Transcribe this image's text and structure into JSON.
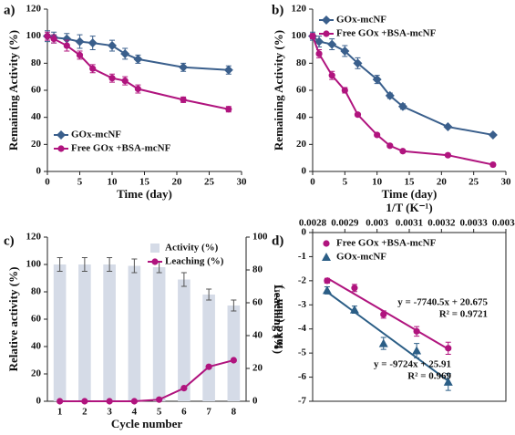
{
  "chart_data": [
    {
      "type": "line",
      "panel_label": "a)",
      "x_label": "Time (day)",
      "y_label": "Remaining Activity (%)",
      "x": [
        0,
        1,
        3,
        5,
        7,
        10,
        12,
        14,
        21,
        28
      ],
      "xlim": [
        0,
        30
      ],
      "xticks": [
        0,
        5,
        10,
        15,
        20,
        25,
        30
      ],
      "ylim": [
        0,
        120
      ],
      "yticks": [
        0,
        20,
        40,
        60,
        80,
        100,
        120
      ],
      "legend": "lower left",
      "series": [
        {
          "name": "GOx-mcNF",
          "color": "#3a5f8c",
          "marker": "diamond",
          "values": [
            100,
            99,
            98,
            96,
            95,
            93,
            87,
            83,
            77,
            75
          ],
          "errors": [
            4,
            4,
            4,
            5,
            5,
            4,
            4,
            3,
            3,
            3
          ]
        },
        {
          "name": "Free GOx +BSA-mcNF",
          "color": "#b0147e",
          "marker": "circle",
          "values": [
            100,
            98,
            93,
            86,
            76,
            69,
            67,
            61,
            53,
            46
          ],
          "errors": [
            3,
            3,
            4,
            3,
            3,
            3,
            3,
            3,
            2,
            2
          ]
        }
      ]
    },
    {
      "type": "line",
      "panel_label": "b)",
      "x_label": "Time (day)",
      "y_label": "Remaining Activity (%)",
      "x": [
        0,
        1,
        3,
        5,
        7,
        10,
        12,
        14,
        21,
        28
      ],
      "xlim": [
        0,
        30
      ],
      "xticks": [
        0,
        5,
        10,
        15,
        20,
        25,
        30
      ],
      "ylim": [
        0,
        120
      ],
      "yticks": [
        0,
        20,
        40,
        60,
        80,
        100,
        120
      ],
      "legend": "upper left",
      "series": [
        {
          "name": "GOx-mcNF",
          "color": "#3a5f8c",
          "marker": "diamond",
          "values": [
            100,
            96,
            94,
            89,
            80,
            68,
            56,
            48,
            33,
            27
          ],
          "errors": [
            3,
            4,
            4,
            4,
            4,
            3,
            2,
            2,
            1,
            1
          ]
        },
        {
          "name": "Free GOx +BSA-mcNF",
          "color": "#b0147e",
          "marker": "circle",
          "values": [
            100,
            87,
            71,
            60,
            42,
            27,
            19,
            15,
            12,
            5
          ],
          "errors": [
            2,
            3,
            3,
            2,
            1,
            1,
            1,
            1,
            1,
            1
          ]
        }
      ]
    },
    {
      "type": "bar",
      "panel_label": "c)",
      "x_label": "Cycle number",
      "y_label": "Relative activity (%)",
      "y2_label": "Leaching (%)",
      "categories": [
        "1",
        "2",
        "3",
        "4",
        "5",
        "6",
        "7",
        "8"
      ],
      "ylim": [
        0,
        120
      ],
      "yticks": [
        0,
        20,
        40,
        60,
        80,
        100,
        120
      ],
      "y2lim": [
        0,
        100
      ],
      "y2ticks": [
        0,
        20,
        40,
        60,
        80,
        100
      ],
      "legend": "upper right",
      "series": [
        {
          "name": "Activity (%)",
          "type": "bar",
          "color": "#d5dbe7",
          "values": [
            100,
            100,
            100,
            99,
            98,
            89,
            78,
            70
          ],
          "errors": [
            5,
            5,
            5,
            5,
            4,
            5,
            4,
            4
          ]
        },
        {
          "name": "Leaching (%)",
          "type": "line",
          "axis": "y2",
          "color": "#b0147e",
          "marker": "circle",
          "values": [
            0,
            0,
            0,
            0,
            1,
            8,
            21,
            25
          ]
        }
      ]
    },
    {
      "type": "scatter",
      "panel_label": "d)",
      "x_label": "1/T (K⁻¹)",
      "y_label": "lnkd (min⁻¹)",
      "x_axis_position": "top",
      "xlim": [
        0.0028,
        0.0034
      ],
      "xticks": [
        0.0028,
        0.0029,
        0.003,
        0.0031,
        0.0032,
        0.0033,
        0.0034
      ],
      "ylim": [
        -7,
        0
      ],
      "yticks": [
        -7,
        -6,
        -5,
        -4,
        -3,
        -2,
        -1,
        0
      ],
      "legend": "upper left",
      "trendline": true,
      "series": [
        {
          "name": "Free GOx +BSA-mcNF",
          "color": "#b0147e",
          "marker": "circle",
          "x": [
            0.002845,
            0.00293,
            0.00302,
            0.003123,
            0.003221
          ],
          "values": [
            -2.0,
            -2.3,
            -3.4,
            -4.1,
            -4.8
          ],
          "errors": [
            0.1,
            0.15,
            0.15,
            0.2,
            0.25
          ]
        },
        {
          "name": "GOx-mcNF",
          "color": "#2b5e86",
          "marker": "triangle",
          "x": [
            0.002845,
            0.00293,
            0.00302,
            0.003123,
            0.003221
          ],
          "values": [
            -2.4,
            -3.2,
            -4.6,
            -4.9,
            -6.2
          ],
          "errors": [
            0.15,
            0.15,
            0.25,
            0.3,
            0.35
          ]
        }
      ],
      "annotations": [
        "y = -7740.5x + 20.675",
        "R² = 0.9721",
        "y = -9724x + 25.91",
        "R² = 0.969"
      ]
    }
  ]
}
